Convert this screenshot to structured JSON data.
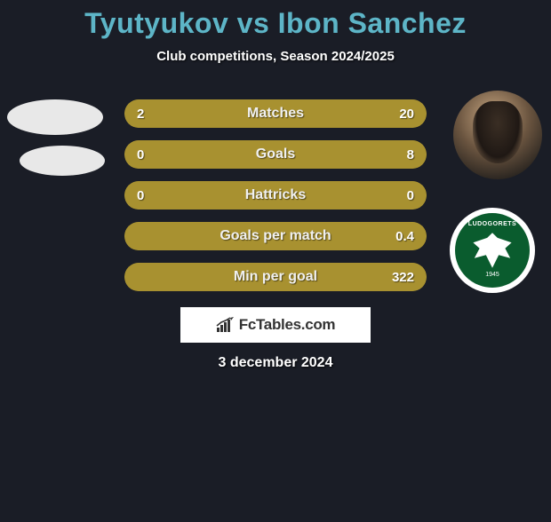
{
  "title": "Tyutyukov vs Ibon Sanchez",
  "title_color": "#5db5c7",
  "subtitle": "Club competitions, Season 2024/2025",
  "date": "3 december 2024",
  "logo_text": "FcTables.com",
  "background_color": "#1a1d26",
  "club_badge": {
    "name": "LUDOGORETS",
    "year": "1945",
    "bg_color": "#0a5c2e",
    "ring_color": "#ffffff"
  },
  "bars": {
    "track_bg": "#1a1d26",
    "left_color": "#a89130",
    "right_color": "#a89130",
    "border_color": "#a89130",
    "height": 32,
    "radius": 16,
    "gap": 14,
    "label_fontsize": 16,
    "value_fontsize": 15,
    "rows": [
      {
        "label": "Matches",
        "left": "2",
        "right": "20",
        "left_pct": 9,
        "right_pct": 91
      },
      {
        "label": "Goals",
        "left": "0",
        "right": "8",
        "left_pct": 0,
        "right_pct": 100
      },
      {
        "label": "Hattricks",
        "left": "0",
        "right": "0",
        "left_pct": 50,
        "right_pct": 50
      },
      {
        "label": "Goals per match",
        "left": "",
        "right": "0.4",
        "left_pct": 0,
        "right_pct": 100
      },
      {
        "label": "Min per goal",
        "left": "",
        "right": "322",
        "left_pct": 0,
        "right_pct": 100
      }
    ]
  }
}
